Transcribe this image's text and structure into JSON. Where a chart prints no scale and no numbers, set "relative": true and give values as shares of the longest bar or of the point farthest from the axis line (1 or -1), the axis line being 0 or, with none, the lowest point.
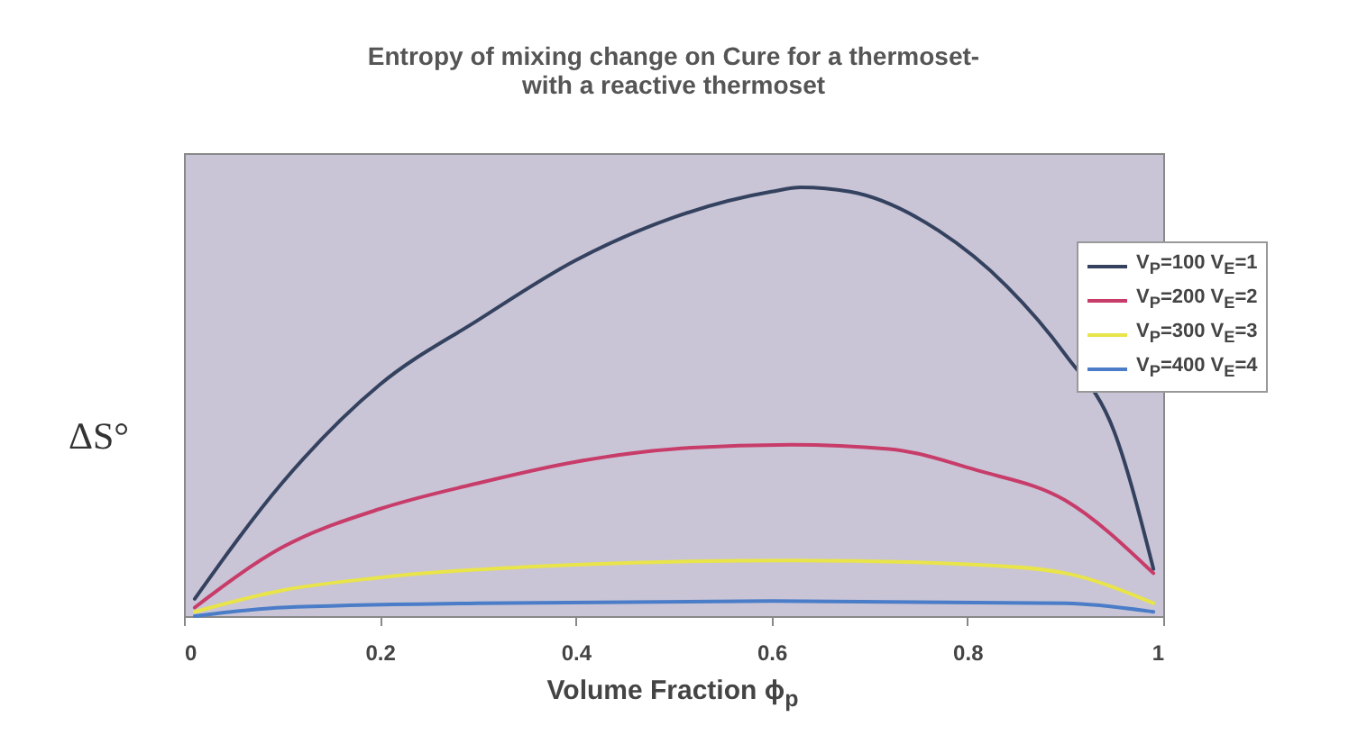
{
  "chart_data": {
    "type": "line",
    "title": "Entropy of mixing change on Cure for a thermoset-\nwith a reactive thermoset",
    "xlabel": "Volume Fraction ϕ$_{p}$",
    "ylabel": "ΔS°",
    "relative": true,
    "xlim": [
      0,
      1
    ],
    "xticks": [
      0,
      0.2,
      0.4,
      0.6,
      0.8,
      1
    ],
    "legend": "top right",
    "line_style": "solid",
    "series": [
      {
        "name": "V$_{P}$=100 V$_{E}$=1",
        "color": "#34425f",
        "x": [
          0.011,
          0.1,
          0.2,
          0.3,
          0.4,
          0.5,
          0.6,
          0.63,
          0.68,
          0.77,
          0.84,
          0.9,
          0.95,
          0.99
        ],
        "values": [
          0.04,
          0.31,
          0.54,
          0.69,
          0.83,
          0.93,
          0.99,
          1.0,
          0.99,
          0.9,
          0.77,
          0.61,
          0.43,
          0.11
        ]
      },
      {
        "name": "V$_{P}$=200 V$_{E}$=2",
        "color": "#c83c6a",
        "x": [
          0.011,
          0.1,
          0.2,
          0.3,
          0.4,
          0.5,
          0.62,
          0.72,
          0.81,
          0.9,
          0.99
        ],
        "values": [
          0.02,
          0.16,
          0.25,
          0.31,
          0.36,
          0.39,
          0.4,
          0.39,
          0.34,
          0.27,
          0.1
        ]
      },
      {
        "name": "V$_{P}$=300 V$_{E}$=3",
        "color": "#e8e44a",
        "x": [
          0.011,
          0.1,
          0.2,
          0.4,
          0.62,
          0.81,
          0.9,
          0.99
        ],
        "values": [
          0.01,
          0.06,
          0.09,
          0.12,
          0.13,
          0.12,
          0.1,
          0.03
        ]
      },
      {
        "name": "V$_{P}$=400 V$_{E}$=4",
        "color": "#4a7cc8",
        "x": [
          0.011,
          0.1,
          0.3,
          0.6,
          0.9,
          0.99
        ],
        "values": [
          0.0,
          0.02,
          0.03,
          0.035,
          0.03,
          0.01
        ]
      }
    ]
  }
}
